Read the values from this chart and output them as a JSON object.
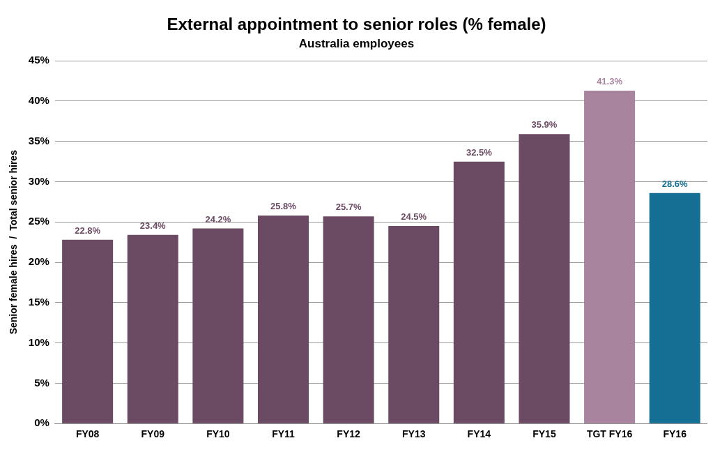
{
  "chart_data": {
    "type": "bar",
    "title": "External appointment to senior roles (% female)",
    "subtitle": "Australia employees",
    "ylabel": "Senior female hires  /  Total senior hires",
    "categories": [
      "FY08",
      "FY09",
      "FY10",
      "FY11",
      "FY12",
      "FY13",
      "FY14",
      "FY15",
      "TGT FY16",
      "FY16"
    ],
    "values": [
      22.8,
      23.4,
      24.2,
      25.8,
      25.7,
      24.5,
      32.5,
      35.9,
      41.3,
      28.6
    ],
    "value_labels": [
      "22.8%",
      "23.4%",
      "24.2%",
      "25.8%",
      "25.7%",
      "24.5%",
      "32.5%",
      "35.9%",
      "41.3%",
      "28.6%"
    ],
    "colors": [
      "#6b4a63",
      "#6b4a63",
      "#6b4a63",
      "#6b4a63",
      "#6b4a63",
      "#6b4a63",
      "#6b4a63",
      "#6b4a63",
      "#a8849f",
      "#156f95"
    ],
    "ylim": [
      0,
      45
    ],
    "yticks": [
      {
        "value": 0,
        "label": "0%"
      },
      {
        "value": 5,
        "label": "5%"
      },
      {
        "value": 10,
        "label": "10%"
      },
      {
        "value": 15,
        "label": "15%"
      },
      {
        "value": 20,
        "label": "20%"
      },
      {
        "value": 25,
        "label": "25%"
      },
      {
        "value": 30,
        "label": "30%"
      },
      {
        "value": 35,
        "label": "35%"
      },
      {
        "value": 40,
        "label": "40%"
      },
      {
        "value": 45,
        "label": "45%"
      }
    ],
    "grid": "y",
    "legend": false
  }
}
